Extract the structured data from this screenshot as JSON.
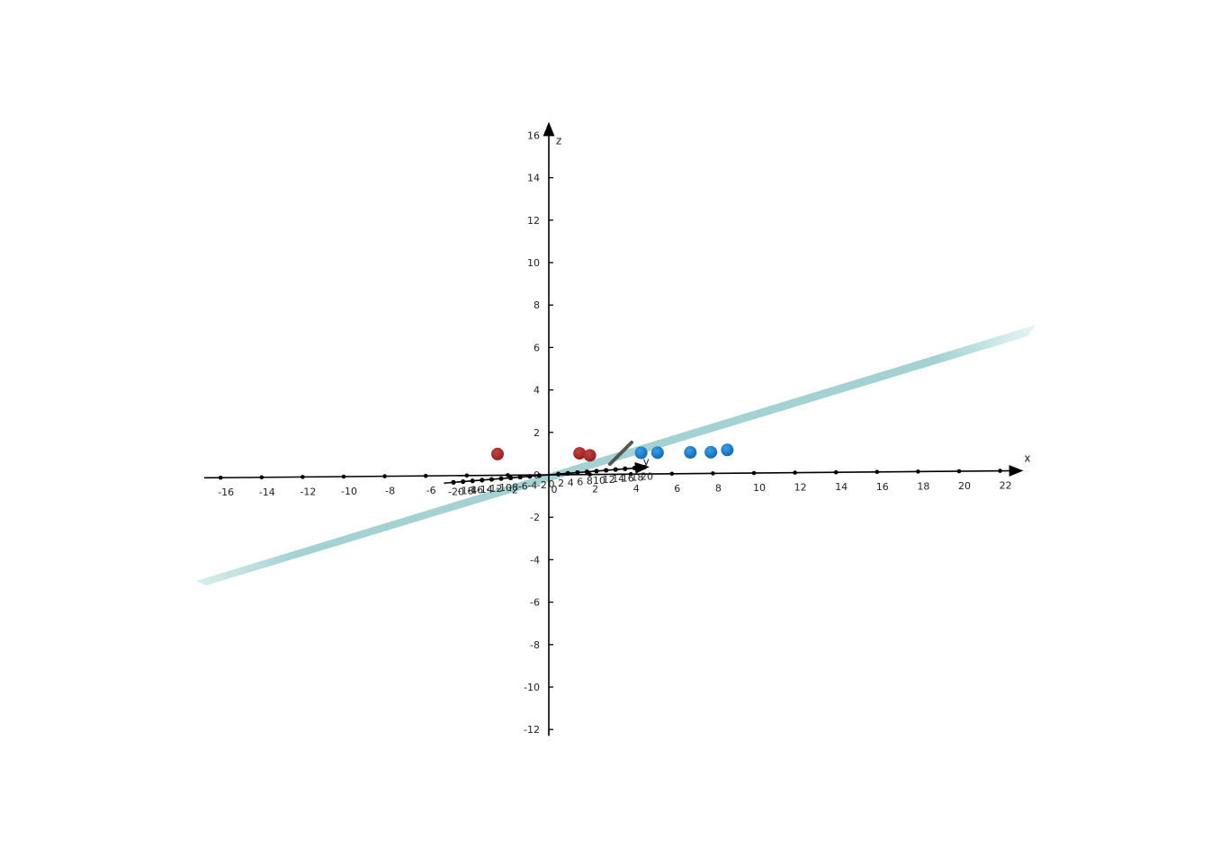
{
  "chart_data": {
    "type": "scatter3d",
    "axes": {
      "x": {
        "label": "x",
        "range": [
          -16,
          22
        ],
        "ticks": [
          -16,
          -14,
          -12,
          -10,
          -8,
          -6,
          -4,
          -2,
          0,
          2,
          4,
          6,
          8,
          10,
          12,
          14,
          16,
          18,
          20,
          22
        ]
      },
      "y": {
        "label": "y",
        "range": [
          -20,
          20
        ],
        "ticks": [
          20,
          18,
          16,
          14,
          12,
          10,
          8,
          6,
          4,
          2,
          0,
          -2,
          -4,
          -6,
          -8,
          -10,
          -12,
          -14,
          -16,
          -18,
          -20
        ]
      },
      "z": {
        "label": "z",
        "range": [
          -12,
          16
        ],
        "ticks": [
          -12,
          -10,
          -8,
          -6,
          -4,
          -2,
          0,
          2,
          4,
          6,
          8,
          10,
          12,
          14,
          16
        ]
      }
    },
    "series": [
      {
        "color": "#a52a2a",
        "points": [
          [
            -2.5,
            0,
            1
          ],
          [
            1.5,
            0,
            1
          ],
          [
            2,
            0,
            0.9
          ]
        ]
      },
      {
        "color": "#1a7fd0",
        "points": [
          [
            4.5,
            0,
            1
          ],
          [
            5.3,
            0,
            1
          ],
          [
            6.9,
            0,
            1
          ],
          [
            7.9,
            0,
            1
          ],
          [
            8.7,
            0,
            1.1
          ]
        ]
      }
    ],
    "plane_color": "#7ec3c3",
    "grid": false
  }
}
